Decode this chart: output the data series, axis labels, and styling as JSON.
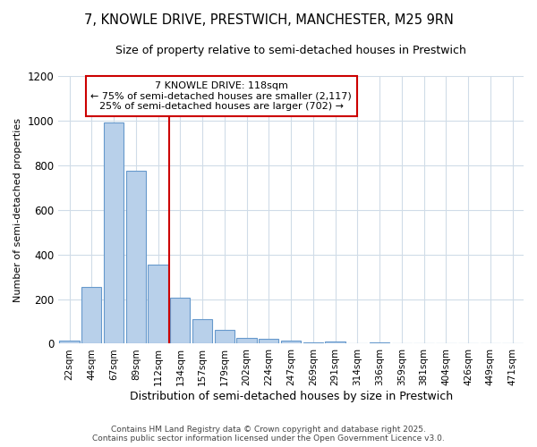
{
  "title_line1": "7, KNOWLE DRIVE, PRESTWICH, MANCHESTER, M25 9RN",
  "title_line2": "Size of property relative to semi-detached houses in Prestwich",
  "xlabel": "Distribution of semi-detached houses by size in Prestwich",
  "ylabel": "Number of semi-detached properties",
  "categories": [
    "22sqm",
    "44sqm",
    "67sqm",
    "89sqm",
    "112sqm",
    "134sqm",
    "157sqm",
    "179sqm",
    "202sqm",
    "224sqm",
    "247sqm",
    "269sqm",
    "291sqm",
    "314sqm",
    "336sqm",
    "359sqm",
    "381sqm",
    "404sqm",
    "426sqm",
    "449sqm",
    "471sqm"
  ],
  "values": [
    15,
    255,
    990,
    775,
    355,
    205,
    110,
    60,
    25,
    20,
    15,
    5,
    10,
    0,
    5,
    0,
    0,
    0,
    0,
    0,
    0
  ],
  "bar_color": "#b8d0ea",
  "bar_edge_color": "#6699cc",
  "vline_pos": 4.5,
  "vline_color": "#cc0000",
  "annotation_text": "7 KNOWLE DRIVE: 118sqm\n← 75% of semi-detached houses are smaller (2,117)\n25% of semi-detached houses are larger (702) →",
  "annotation_box_color": "#ffffff",
  "annotation_box_edge_color": "#cc0000",
  "ylim": [
    0,
    1200
  ],
  "yticks": [
    0,
    200,
    400,
    600,
    800,
    1000,
    1200
  ],
  "footer_line1": "Contains HM Land Registry data © Crown copyright and database right 2025.",
  "footer_line2": "Contains public sector information licensed under the Open Government Licence v3.0.",
  "bg_color": "#ffffff",
  "plot_bg_color": "#ffffff",
  "grid_color": "#d0dce8"
}
